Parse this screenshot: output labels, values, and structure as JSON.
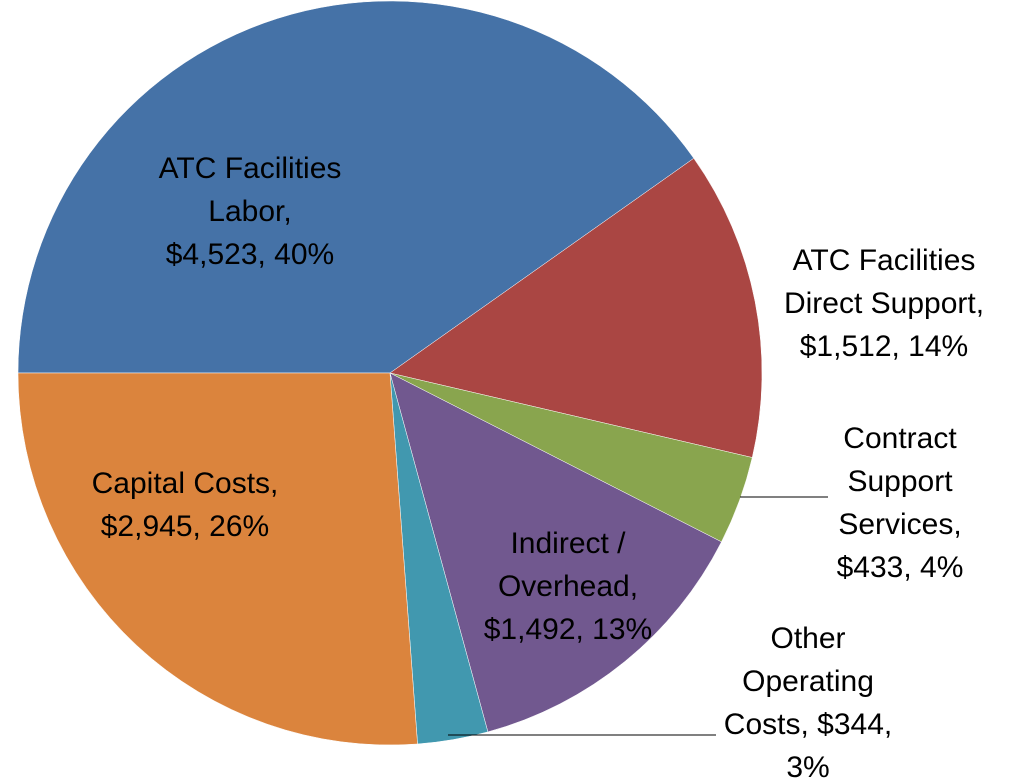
{
  "chart_data": {
    "type": "pie",
    "values": [
      4523,
      1512,
      433,
      1492,
      344,
      2945
    ],
    "value_labels": [
      [
        "ATC Facilities",
        "Labor,",
        "$4,523, 40%"
      ],
      [
        "ATC Facilities",
        "Direct Support,",
        "$1,512, 14%"
      ],
      [
        "Contract",
        "Support",
        "Services,",
        "$433, 4%"
      ],
      [
        "Indirect /",
        "Overhead,",
        "$1,492, 13%"
      ],
      [
        "Other",
        "Operating",
        "Costs, $344,",
        "3%"
      ],
      [
        "Capital Costs,",
        "$2,945, 26%"
      ]
    ],
    "colors": [
      "#4572a7",
      "#aa4643",
      "#89a54e",
      "#71588f",
      "#4198af",
      "#db843d"
    ]
  }
}
